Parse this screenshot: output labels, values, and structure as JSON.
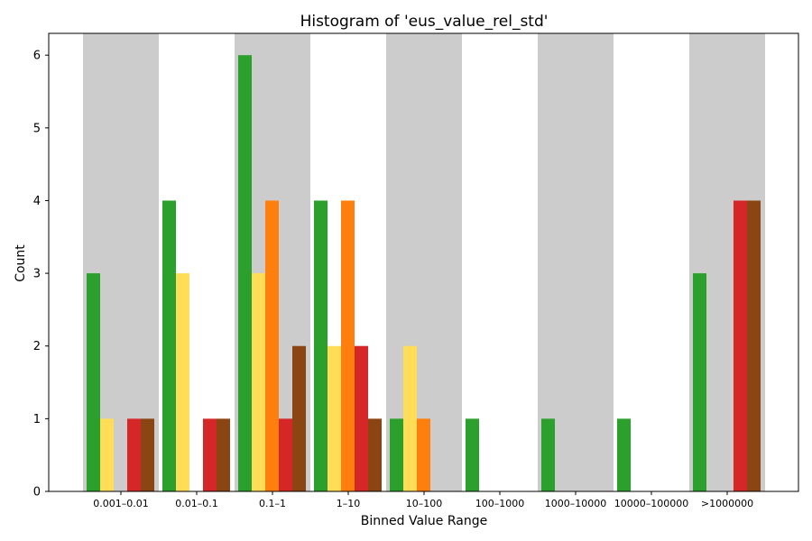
{
  "chart_data": {
    "type": "bar",
    "title": "Histogram of 'eus_value_rel_std'",
    "xlabel": "Binned Value Range",
    "ylabel": "Count",
    "ylim": [
      0,
      6.3
    ],
    "yticks": [
      0,
      1,
      2,
      3,
      4,
      5,
      6
    ],
    "grid": false,
    "legend": "none",
    "band_color": "#cccccc",
    "categories": [
      "0.001–0.01",
      "0.01–0.1",
      "0.1–1",
      "1–10",
      "10–100",
      "100–1000",
      "1000–10000",
      "10000–100000",
      ">1000000"
    ],
    "series": [
      {
        "color": "#2ca02c",
        "values": [
          3,
          4,
          6,
          4,
          1,
          1,
          1,
          1,
          3
        ]
      },
      {
        "color": "#ffdd57",
        "values": [
          1,
          3,
          3,
          2,
          2,
          0,
          0,
          0,
          0
        ]
      },
      {
        "color": "#ff7f0e",
        "values": [
          0,
          0,
          4,
          4,
          1,
          0,
          0,
          0,
          0
        ]
      },
      {
        "color": "#d62728",
        "values": [
          1,
          1,
          1,
          2,
          0,
          0,
          0,
          0,
          4
        ]
      },
      {
        "color": "#8b4513",
        "values": [
          1,
          1,
          2,
          1,
          0,
          0,
          0,
          0,
          4
        ]
      }
    ]
  }
}
